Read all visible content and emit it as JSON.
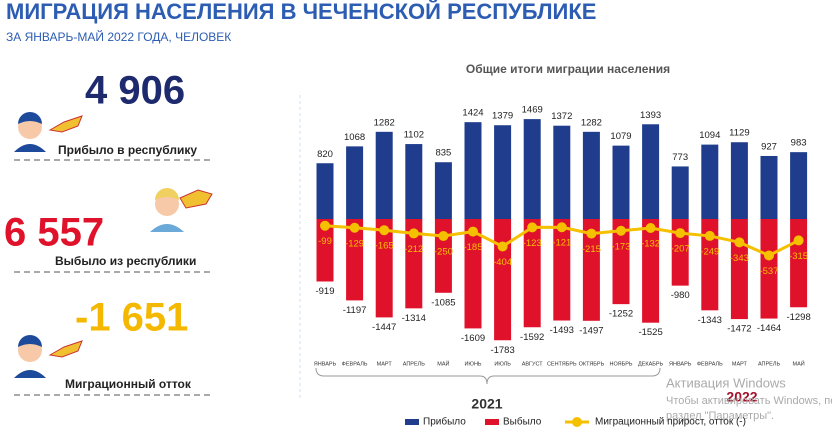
{
  "header": {
    "title": "МИГРАЦИЯ НАСЕЛЕНИЯ В ЧЕЧЕНСКОЙ РЕСПУБЛИКЕ",
    "subtitle": "ЗА ЯНВАРЬ-МАЙ 2022 ГОДА, ЧЕЛОВЕК"
  },
  "summary": [
    {
      "value": "4 906",
      "label": "Прибыло в республику"
    },
    {
      "value": "6 557",
      "label": "Выбыло из  республики"
    },
    {
      "value": "-1 651",
      "label": "Миграционный  отток"
    }
  ],
  "chart_data": {
    "type": "bar",
    "title": "Общие итоги миграции населения",
    "categories": [
      "ЯНВАРЬ",
      "ФЕВРАЛЬ",
      "МАРТ",
      "АПРЕЛЬ",
      "МАЙ",
      "ИЮНЬ",
      "ИЮЛЬ",
      "АВГУСТ",
      "СЕНТЯБРЬ",
      "ОКТЯБРЬ",
      "НОЯБРЬ",
      "ДЕКАБРЬ",
      "ЯНВАРЬ",
      "ФЕВРАЛЬ",
      "МАРТ",
      "АПРЕЛЬ",
      "МАЙ"
    ],
    "year_labels": [
      "2021",
      "2022"
    ],
    "series": [
      {
        "name": "Прибыло",
        "color": "#1f3d8c",
        "type": "bar",
        "values": [
          820,
          1068,
          1282,
          1102,
          835,
          1424,
          1379,
          1469,
          1372,
          1282,
          1079,
          1393,
          773,
          1094,
          1129,
          927,
          983
        ]
      },
      {
        "name": "Выбыло",
        "color": "#e0112b",
        "type": "bar",
        "values": [
          -919,
          -1197,
          -1447,
          -1314,
          -1085,
          -1609,
          -1783,
          -1592,
          -1493,
          -1497,
          -1252,
          -1525,
          -980,
          -1343,
          -1472,
          -1464,
          -1298
        ]
      },
      {
        "name": "Миграционный прирост, отток (-)",
        "color": "#f5c000",
        "type": "line",
        "values": [
          -99,
          -129,
          -165,
          -212,
          -250,
          -185,
          -404,
          -123,
          -121,
          -215,
          -173,
          -132,
          -207,
          -249,
          -343,
          -537,
          -315
        ]
      }
    ],
    "legend": "bottom"
  },
  "watermark": [
    "Активация Windows",
    "Чтобы активировать Windows, перейдите в",
    "раздел \"Параметры\"."
  ]
}
